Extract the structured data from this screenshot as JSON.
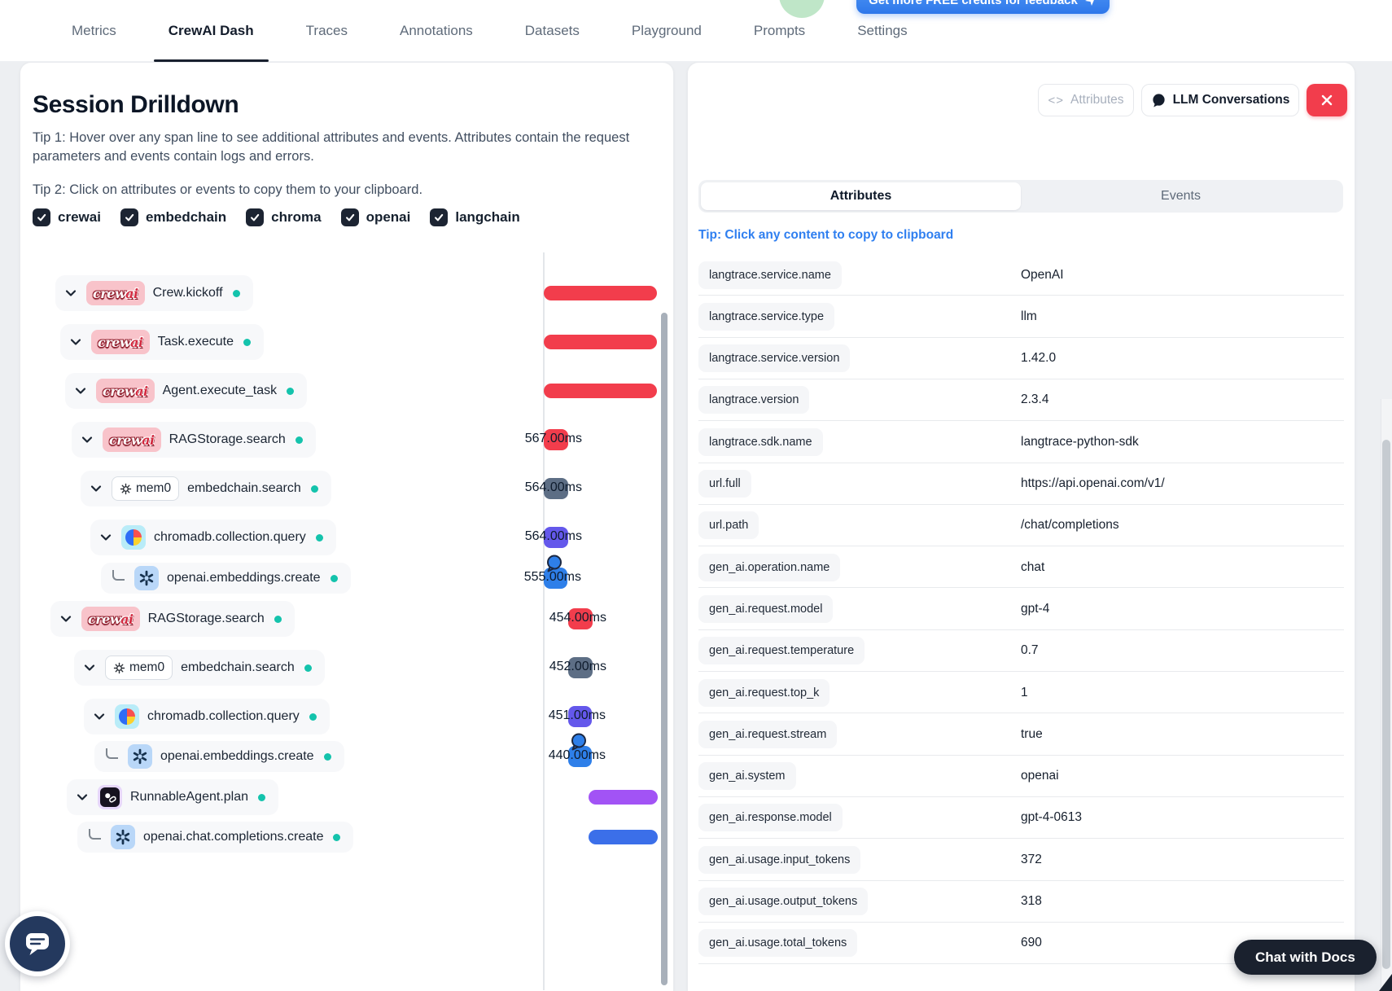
{
  "nav": {
    "tabs": [
      "Metrics",
      "CrewAI Dash",
      "Traces",
      "Annotations",
      "Datasets",
      "Playground",
      "Prompts",
      "Settings"
    ],
    "active_tab": "CrewAI Dash",
    "credits_button_label": "Get more FREE credits for feedback"
  },
  "left_panel": {
    "title": "Session Drilldown",
    "tip1": "Tip 1: Hover over any span line to see additional attributes and events. Attributes contain the request parameters and events contain logs and errors.",
    "tip2": "Tip 2: Click on attributes or events to copy them to your clipboard.",
    "filters": [
      "crewai",
      "embedchain",
      "chroma",
      "openai",
      "langchain"
    ],
    "spans": [
      {
        "label": "Crew.kickoff",
        "vendor": "crewai",
        "bar_color": "#f23d4c"
      },
      {
        "label": "Task.execute",
        "vendor": "crewai",
        "bar_color": "#f23d4c"
      },
      {
        "label": "Agent.execute_task",
        "vendor": "crewai",
        "bar_color": "#f23d4c"
      },
      {
        "label": "RAGStorage.search",
        "vendor": "crewai",
        "duration": "567.00ms",
        "bar_color": "#f23d4c"
      },
      {
        "label": "embedchain.search",
        "vendor": "mem0",
        "duration": "564.00ms",
        "bar_color": "#5d6e85"
      },
      {
        "label": "chromadb.collection.query",
        "vendor": "chroma",
        "duration": "564.00ms",
        "bar_color": "#6458eb"
      },
      {
        "label": "openai.embeddings.create",
        "vendor": "openai",
        "duration": "555.00ms",
        "bar_color": "#2e7fe9",
        "bubble": true
      },
      {
        "label": "RAGStorage.search",
        "vendor": "crewai",
        "duration": "454.00ms",
        "bar_color": "#f23d4c"
      },
      {
        "label": "embedchain.search",
        "vendor": "mem0",
        "duration": "452.00ms",
        "bar_color": "#5d6e85"
      },
      {
        "label": "chromadb.collection.query",
        "vendor": "chroma",
        "duration": "451.00ms",
        "bar_color": "#6458eb"
      },
      {
        "label": "openai.embeddings.create",
        "vendor": "openai",
        "duration": "440.00ms",
        "bar_color": "#2e7fe9",
        "bubble": true
      },
      {
        "label": "RunnableAgent.plan",
        "vendor": "langchain",
        "bar_color": "#a253f5"
      },
      {
        "label": "openai.chat.completions.create",
        "vendor": "openai",
        "bar_color": "#3b6fe9"
      }
    ],
    "status_dot_color": "#14c3ac"
  },
  "right_panel": {
    "attributes_button": "Attributes",
    "llm_conversations_button": "LLM Conversations",
    "tabs": [
      "Attributes",
      "Events"
    ],
    "active_tab": "Attributes",
    "copy_tip": "Tip: Click any content to copy to clipboard",
    "attributes": [
      {
        "key": "langtrace.service.name",
        "value": "OpenAI"
      },
      {
        "key": "langtrace.service.type",
        "value": "llm"
      },
      {
        "key": "langtrace.service.version",
        "value": "1.42.0"
      },
      {
        "key": "langtrace.version",
        "value": "2.3.4"
      },
      {
        "key": "langtrace.sdk.name",
        "value": "langtrace-python-sdk"
      },
      {
        "key": "url.full",
        "value": "https://api.openai.com/v1/"
      },
      {
        "key": "url.path",
        "value": "/chat/completions"
      },
      {
        "key": "gen_ai.operation.name",
        "value": "chat"
      },
      {
        "key": "gen_ai.request.model",
        "value": "gpt-4"
      },
      {
        "key": "gen_ai.request.temperature",
        "value": "0.7"
      },
      {
        "key": "gen_ai.request.top_k",
        "value": "1"
      },
      {
        "key": "gen_ai.request.stream",
        "value": "true"
      },
      {
        "key": "gen_ai.system",
        "value": "openai"
      },
      {
        "key": "gen_ai.response.model",
        "value": "gpt-4-0613"
      },
      {
        "key": "gen_ai.usage.input_tokens",
        "value": "372"
      },
      {
        "key": "gen_ai.usage.output_tokens",
        "value": "318"
      },
      {
        "key": "gen_ai.usage.total_tokens",
        "value": "690"
      }
    ]
  },
  "widgets": {
    "chat_docs_button": "Chat with Docs"
  },
  "colors": {
    "accent_red": "#f23d4c",
    "accent_teal": "#14c3ac",
    "accent_blue": "#2f7ff0",
    "bar_slate": "#5d6e85",
    "bar_indigo": "#6458eb",
    "bar_purple": "#a253f5"
  }
}
